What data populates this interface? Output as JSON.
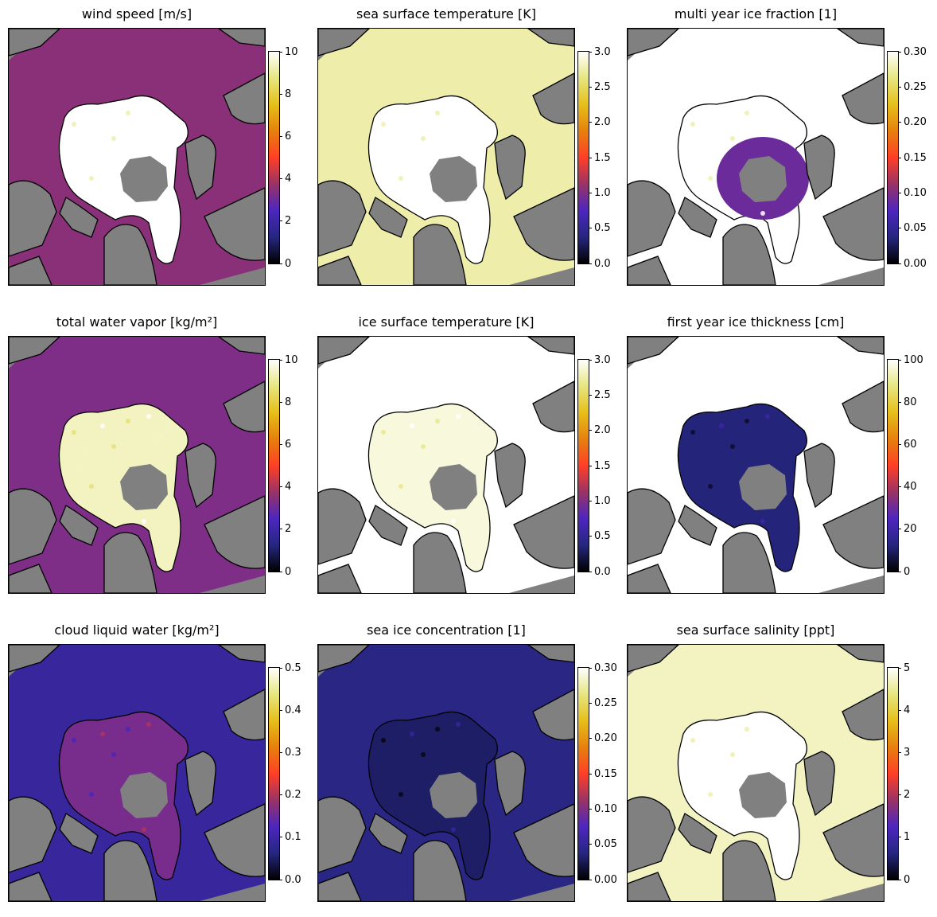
{
  "chart_data": [
    {
      "type": "heatmap",
      "title": "wind speed [m/s]",
      "colormap": "CMRmap",
      "clim": [
        0,
        10
      ],
      "colorbar_ticks": [
        "0",
        "2",
        "4",
        "6",
        "8",
        "10"
      ],
      "ice_value": 10,
      "ocean_value": 3.5
    },
    {
      "type": "heatmap",
      "title": "sea surface temperature [K]",
      "colormap": "CMRmap",
      "clim": [
        0.0,
        3.0
      ],
      "colorbar_ticks": [
        "0.0",
        "0.5",
        "1.0",
        "1.5",
        "2.0",
        "2.5",
        "3.0"
      ],
      "ice_value": 3.0,
      "ocean_value": 2.75
    },
    {
      "type": "heatmap",
      "title": "multi year ice fraction [1]",
      "colormap": "CMRmap",
      "clim": [
        0.0,
        0.3
      ],
      "colorbar_ticks": [
        "0.00",
        "0.05",
        "0.10",
        "0.15",
        "0.20",
        "0.25",
        "0.30"
      ],
      "ice_value": 0.3,
      "ocean_value": 0.3,
      "center_value": 0.09
    },
    {
      "type": "heatmap",
      "title": "total water vapor [kg/m²]",
      "colormap": "CMRmap",
      "clim": [
        0,
        10
      ],
      "colorbar_ticks": [
        "0",
        "2",
        "4",
        "6",
        "8",
        "10"
      ],
      "ice_value": 9.4,
      "ocean_value": 3.3
    },
    {
      "type": "heatmap",
      "title": "ice surface temperature [K]",
      "colormap": "CMRmap",
      "clim": [
        0.0,
        3.0
      ],
      "colorbar_ticks": [
        "0.0",
        "0.5",
        "1.0",
        "1.5",
        "2.0",
        "2.5",
        "3.0"
      ],
      "ice_value": 2.9,
      "ocean_value": 3.0
    },
    {
      "type": "heatmap",
      "title": "first year ice thickness [cm]",
      "colormap": "CMRmap",
      "clim": [
        0,
        100
      ],
      "colorbar_ticks": [
        "0",
        "20",
        "40",
        "60",
        "80",
        "100"
      ],
      "ice_value": 12,
      "ocean_value": 100
    },
    {
      "type": "heatmap",
      "title": "cloud liquid water [kg/m²]",
      "colormap": "CMRmap",
      "clim": [
        0.0,
        0.5
      ],
      "colorbar_ticks": [
        "0.0",
        "0.1",
        "0.2",
        "0.3",
        "0.4",
        "0.5"
      ],
      "ice_value": 0.16,
      "ocean_value": 0.09
    },
    {
      "type": "heatmap",
      "title": "sea ice concentration [1]",
      "colormap": "CMRmap",
      "clim": [
        0.0,
        0.3
      ],
      "colorbar_ticks": [
        "0.00",
        "0.05",
        "0.10",
        "0.15",
        "0.20",
        "0.25",
        "0.30"
      ],
      "ice_value": 0.03,
      "ocean_value": 0.04
    },
    {
      "type": "heatmap",
      "title": "sea surface salinity [ppt]",
      "colormap": "CMRmap",
      "clim": [
        0,
        5
      ],
      "colorbar_ticks": [
        "0",
        "1",
        "2",
        "3",
        "4",
        "5"
      ],
      "ice_value": 5,
      "ocean_value": 4.7
    }
  ],
  "colors": {
    "land": "#808080",
    "coastline": "#000000",
    "background": "#ffffff"
  }
}
